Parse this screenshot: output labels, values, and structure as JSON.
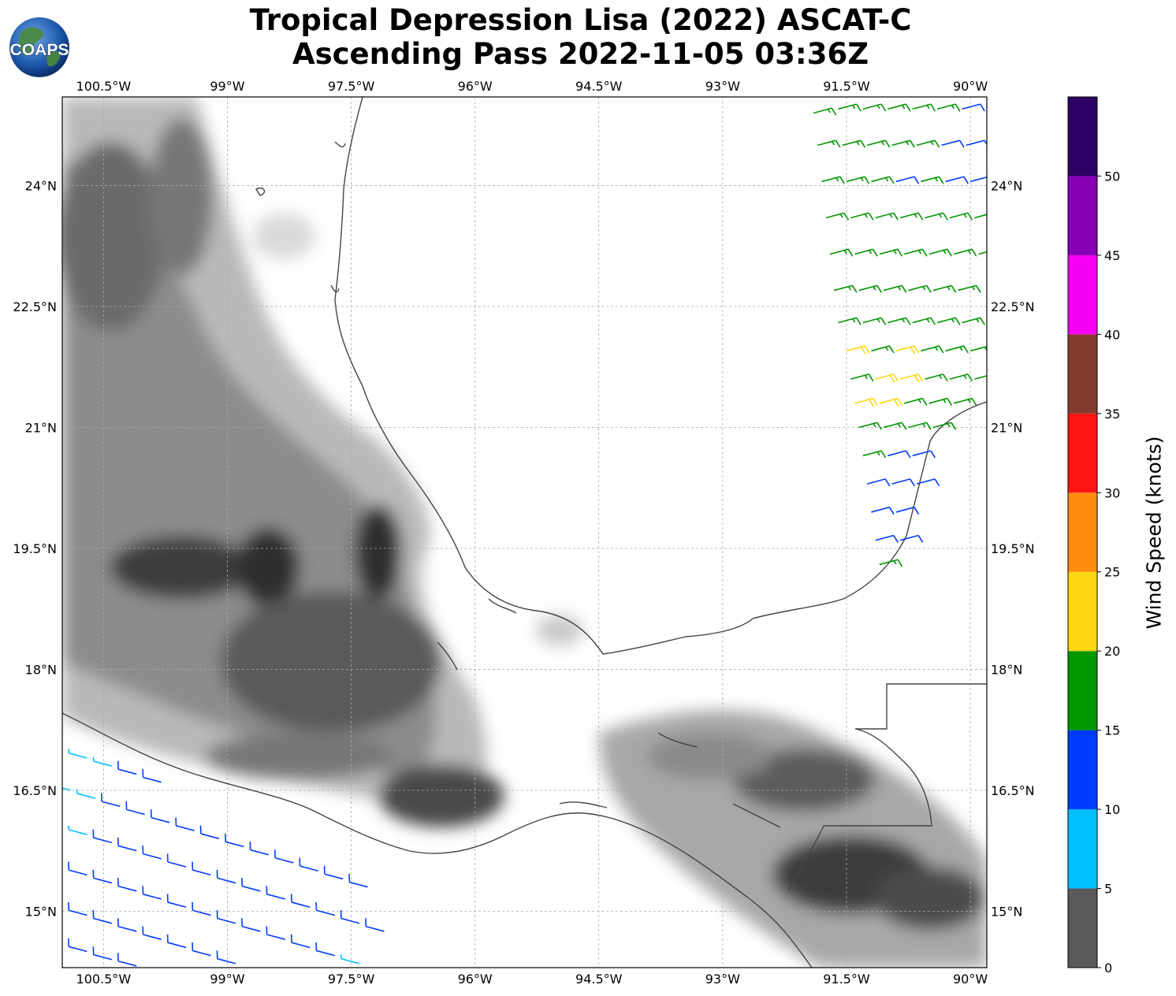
{
  "title": {
    "line1": "Tropical Depression Lisa (2022) ASCAT-C",
    "line2": "Ascending Pass 2022-11-05 03:36Z"
  },
  "logo": {
    "text": "COAPS",
    "icon": "globe-icon"
  },
  "map": {
    "lon_range": [
      -101.0,
      -89.8
    ],
    "lat_range": [
      14.3,
      25.1
    ],
    "gridlines": true,
    "lon_ticks": [
      {
        "value": -100.5,
        "label": "100.5°W"
      },
      {
        "value": -99.0,
        "label": "99°W"
      },
      {
        "value": -97.5,
        "label": "97.5°W"
      },
      {
        "value": -96.0,
        "label": "96°W"
      },
      {
        "value": -94.5,
        "label": "94.5°W"
      },
      {
        "value": -93.0,
        "label": "93°W"
      },
      {
        "value": -91.5,
        "label": "91.5°W"
      },
      {
        "value": -90.0,
        "label": "90°W"
      }
    ],
    "lat_ticks": [
      {
        "value": 24.0,
        "label": "24°N"
      },
      {
        "value": 22.5,
        "label": "22.5°N"
      },
      {
        "value": 21.0,
        "label": "21°N"
      },
      {
        "value": 19.5,
        "label": "19.5°N"
      },
      {
        "value": 18.0,
        "label": "18°N"
      },
      {
        "value": 16.5,
        "label": "16.5°N"
      },
      {
        "value": 15.0,
        "label": "15°N"
      }
    ],
    "terrain": "grayscale elevation shading",
    "coastline_color": "#444444"
  },
  "colorbar": {
    "label": "Wind Speed (knots)",
    "bins": [
      {
        "min": 0,
        "max": 5,
        "color": "#595959"
      },
      {
        "min": 5,
        "max": 10,
        "color": "#00bfff"
      },
      {
        "min": 10,
        "max": 15,
        "color": "#003cff"
      },
      {
        "min": 15,
        "max": 20,
        "color": "#009600"
      },
      {
        "min": 20,
        "max": 25,
        "color": "#ffd712"
      },
      {
        "min": 25,
        "max": 30,
        "color": "#ff8c0f"
      },
      {
        "min": 30,
        "max": 35,
        "color": "#ff1414"
      },
      {
        "min": 35,
        "max": 40,
        "color": "#823c2d"
      },
      {
        "min": 40,
        "max": 45,
        "color": "#f500f5"
      },
      {
        "min": 45,
        "max": 50,
        "color": "#8700b4"
      },
      {
        "min": 50,
        "max": 55,
        "color": "#2d0064"
      }
    ],
    "ticks": [
      "0",
      "5",
      "10",
      "15",
      "20",
      "25",
      "30",
      "35",
      "40",
      "45",
      "50"
    ]
  },
  "wind_swaths": [
    {
      "name": "east-swath",
      "direction_from_deg": 75,
      "points": [
        {
          "lon": -91.9,
          "lat": 24.9,
          "speed": 17
        },
        {
          "lon": -91.6,
          "lat": 24.95,
          "speed": 17
        },
        {
          "lon": -91.3,
          "lat": 24.95,
          "speed": 17
        },
        {
          "lon": -91.0,
          "lat": 24.95,
          "speed": 17
        },
        {
          "lon": -90.7,
          "lat": 24.95,
          "speed": 17
        },
        {
          "lon": -90.4,
          "lat": 24.95,
          "speed": 17
        },
        {
          "lon": -90.1,
          "lat": 24.95,
          "speed": 12
        },
        {
          "lon": -91.85,
          "lat": 24.5,
          "speed": 17
        },
        {
          "lon": -91.55,
          "lat": 24.5,
          "speed": 17
        },
        {
          "lon": -91.25,
          "lat": 24.5,
          "speed": 17
        },
        {
          "lon": -90.95,
          "lat": 24.5,
          "speed": 17
        },
        {
          "lon": -90.65,
          "lat": 24.5,
          "speed": 17
        },
        {
          "lon": -90.35,
          "lat": 24.5,
          "speed": 12
        },
        {
          "lon": -90.05,
          "lat": 24.5,
          "speed": 12
        },
        {
          "lon": -91.8,
          "lat": 24.05,
          "speed": 17
        },
        {
          "lon": -91.5,
          "lat": 24.05,
          "speed": 17
        },
        {
          "lon": -91.2,
          "lat": 24.05,
          "speed": 17
        },
        {
          "lon": -90.9,
          "lat": 24.05,
          "speed": 12
        },
        {
          "lon": -90.6,
          "lat": 24.05,
          "speed": 17
        },
        {
          "lon": -90.3,
          "lat": 24.05,
          "speed": 12
        },
        {
          "lon": -90.0,
          "lat": 24.05,
          "speed": 12
        },
        {
          "lon": -91.75,
          "lat": 23.6,
          "speed": 17
        },
        {
          "lon": -91.45,
          "lat": 23.6,
          "speed": 17
        },
        {
          "lon": -91.15,
          "lat": 23.6,
          "speed": 17
        },
        {
          "lon": -90.85,
          "lat": 23.6,
          "speed": 17
        },
        {
          "lon": -90.55,
          "lat": 23.6,
          "speed": 17
        },
        {
          "lon": -90.25,
          "lat": 23.6,
          "speed": 17
        },
        {
          "lon": -89.95,
          "lat": 23.6,
          "speed": 17
        },
        {
          "lon": -91.7,
          "lat": 23.15,
          "speed": 17
        },
        {
          "lon": -91.4,
          "lat": 23.15,
          "speed": 17
        },
        {
          "lon": -91.1,
          "lat": 23.15,
          "speed": 17
        },
        {
          "lon": -90.8,
          "lat": 23.15,
          "speed": 17
        },
        {
          "lon": -90.5,
          "lat": 23.15,
          "speed": 17
        },
        {
          "lon": -90.2,
          "lat": 23.15,
          "speed": 17
        },
        {
          "lon": -89.9,
          "lat": 23.15,
          "speed": 17
        },
        {
          "lon": -91.65,
          "lat": 22.7,
          "speed": 17
        },
        {
          "lon": -91.35,
          "lat": 22.7,
          "speed": 17
        },
        {
          "lon": -91.05,
          "lat": 22.7,
          "speed": 17
        },
        {
          "lon": -90.75,
          "lat": 22.7,
          "speed": 17
        },
        {
          "lon": -90.45,
          "lat": 22.7,
          "speed": 17
        },
        {
          "lon": -90.15,
          "lat": 22.7,
          "speed": 17
        },
        {
          "lon": -91.6,
          "lat": 22.3,
          "speed": 17
        },
        {
          "lon": -91.3,
          "lat": 22.3,
          "speed": 17
        },
        {
          "lon": -91.0,
          "lat": 22.3,
          "speed": 17
        },
        {
          "lon": -90.7,
          "lat": 22.3,
          "speed": 17
        },
        {
          "lon": -90.4,
          "lat": 22.3,
          "speed": 17
        },
        {
          "lon": -90.1,
          "lat": 22.3,
          "speed": 17
        },
        {
          "lon": -91.5,
          "lat": 21.95,
          "speed": 22
        },
        {
          "lon": -91.2,
          "lat": 21.95,
          "speed": 17
        },
        {
          "lon": -90.9,
          "lat": 21.95,
          "speed": 22
        },
        {
          "lon": -90.6,
          "lat": 21.95,
          "speed": 17
        },
        {
          "lon": -90.3,
          "lat": 21.95,
          "speed": 17
        },
        {
          "lon": -90.0,
          "lat": 21.95,
          "speed": 17
        },
        {
          "lon": -91.45,
          "lat": 21.6,
          "speed": 17
        },
        {
          "lon": -91.15,
          "lat": 21.6,
          "speed": 22
        },
        {
          "lon": -90.85,
          "lat": 21.6,
          "speed": 22
        },
        {
          "lon": -90.55,
          "lat": 21.6,
          "speed": 17
        },
        {
          "lon": -90.25,
          "lat": 21.6,
          "speed": 17
        },
        {
          "lon": -89.95,
          "lat": 21.6,
          "speed": 17
        },
        {
          "lon": -91.4,
          "lat": 21.3,
          "speed": 22
        },
        {
          "lon": -91.1,
          "lat": 21.3,
          "speed": 22
        },
        {
          "lon": -90.8,
          "lat": 21.3,
          "speed": 17
        },
        {
          "lon": -90.5,
          "lat": 21.3,
          "speed": 17
        },
        {
          "lon": -90.2,
          "lat": 21.3,
          "speed": 17
        },
        {
          "lon": -91.35,
          "lat": 21.0,
          "speed": 17
        },
        {
          "lon": -91.05,
          "lat": 21.0,
          "speed": 17
        },
        {
          "lon": -90.75,
          "lat": 21.0,
          "speed": 17
        },
        {
          "lon": -90.45,
          "lat": 21.0,
          "speed": 17
        },
        {
          "lon": -91.3,
          "lat": 20.65,
          "speed": 17
        },
        {
          "lon": -91.0,
          "lat": 20.65,
          "speed": 12
        },
        {
          "lon": -90.7,
          "lat": 20.65,
          "speed": 12
        },
        {
          "lon": -91.25,
          "lat": 20.3,
          "speed": 12
        },
        {
          "lon": -90.95,
          "lat": 20.3,
          "speed": 12
        },
        {
          "lon": -90.65,
          "lat": 20.3,
          "speed": 12
        },
        {
          "lon": -91.2,
          "lat": 19.95,
          "speed": 12
        },
        {
          "lon": -90.9,
          "lat": 19.95,
          "speed": 12
        },
        {
          "lon": -91.15,
          "lat": 19.6,
          "speed": 12
        },
        {
          "lon": -90.85,
          "lat": 19.6,
          "speed": 12
        },
        {
          "lon": -91.1,
          "lat": 19.3,
          "speed": 17
        }
      ]
    },
    {
      "name": "southwest-swath",
      "direction_from_deg": 285,
      "points": [
        {
          "lon": -100.7,
          "lat": 16.9,
          "speed": 7
        },
        {
          "lon": -100.4,
          "lat": 16.8,
          "speed": 7
        },
        {
          "lon": -100.1,
          "lat": 16.7,
          "speed": 12
        },
        {
          "lon": -99.8,
          "lat": 16.6,
          "speed": 12
        },
        {
          "lon": -100.9,
          "lat": 16.5,
          "speed": 7
        },
        {
          "lon": -100.6,
          "lat": 16.4,
          "speed": 7
        },
        {
          "lon": -100.3,
          "lat": 16.3,
          "speed": 12
        },
        {
          "lon": -100.0,
          "lat": 16.2,
          "speed": 12
        },
        {
          "lon": -99.7,
          "lat": 16.1,
          "speed": 12
        },
        {
          "lon": -99.4,
          "lat": 16.0,
          "speed": 12
        },
        {
          "lon": -99.1,
          "lat": 15.9,
          "speed": 12
        },
        {
          "lon": -98.8,
          "lat": 15.8,
          "speed": 12
        },
        {
          "lon": -98.5,
          "lat": 15.7,
          "speed": 12
        },
        {
          "lon": -98.2,
          "lat": 15.6,
          "speed": 12
        },
        {
          "lon": -97.9,
          "lat": 15.5,
          "speed": 12
        },
        {
          "lon": -97.6,
          "lat": 15.4,
          "speed": 12
        },
        {
          "lon": -97.3,
          "lat": 15.3,
          "speed": 12
        },
        {
          "lon": -101.0,
          "lat": 16.05,
          "speed": 7
        },
        {
          "lon": -100.7,
          "lat": 15.95,
          "speed": 7
        },
        {
          "lon": -100.4,
          "lat": 15.85,
          "speed": 12
        },
        {
          "lon": -100.1,
          "lat": 15.75,
          "speed": 12
        },
        {
          "lon": -99.8,
          "lat": 15.65,
          "speed": 12
        },
        {
          "lon": -99.5,
          "lat": 15.55,
          "speed": 12
        },
        {
          "lon": -99.2,
          "lat": 15.45,
          "speed": 12
        },
        {
          "lon": -98.9,
          "lat": 15.35,
          "speed": 12
        },
        {
          "lon": -98.6,
          "lat": 15.25,
          "speed": 12
        },
        {
          "lon": -98.3,
          "lat": 15.15,
          "speed": 12
        },
        {
          "lon": -98.0,
          "lat": 15.05,
          "speed": 12
        },
        {
          "lon": -97.7,
          "lat": 14.95,
          "speed": 12
        },
        {
          "lon": -97.4,
          "lat": 14.85,
          "speed": 12
        },
        {
          "lon": -97.1,
          "lat": 14.75,
          "speed": 12
        },
        {
          "lon": -101.0,
          "lat": 15.55,
          "speed": 7
        },
        {
          "lon": -100.7,
          "lat": 15.45,
          "speed": 12
        },
        {
          "lon": -100.4,
          "lat": 15.35,
          "speed": 12
        },
        {
          "lon": -100.1,
          "lat": 15.25,
          "speed": 12
        },
        {
          "lon": -99.8,
          "lat": 15.15,
          "speed": 12
        },
        {
          "lon": -99.5,
          "lat": 15.05,
          "speed": 12
        },
        {
          "lon": -99.2,
          "lat": 14.95,
          "speed": 12
        },
        {
          "lon": -98.9,
          "lat": 14.85,
          "speed": 12
        },
        {
          "lon": -98.6,
          "lat": 14.75,
          "speed": 12
        },
        {
          "lon": -98.3,
          "lat": 14.65,
          "speed": 12
        },
        {
          "lon": -98.0,
          "lat": 14.55,
          "speed": 12
        },
        {
          "lon": -97.7,
          "lat": 14.45,
          "speed": 12
        },
        {
          "lon": -97.4,
          "lat": 14.35,
          "speed": 7
        },
        {
          "lon": -101.0,
          "lat": 15.05,
          "speed": 12
        },
        {
          "lon": -100.7,
          "lat": 14.95,
          "speed": 12
        },
        {
          "lon": -100.4,
          "lat": 14.85,
          "speed": 12
        },
        {
          "lon": -100.1,
          "lat": 14.75,
          "speed": 12
        },
        {
          "lon": -99.8,
          "lat": 14.65,
          "speed": 12
        },
        {
          "lon": -99.5,
          "lat": 14.55,
          "speed": 12
        },
        {
          "lon": -99.2,
          "lat": 14.45,
          "speed": 12
        },
        {
          "lon": -98.9,
          "lat": 14.35,
          "speed": 12
        },
        {
          "lon": -101.0,
          "lat": 14.6,
          "speed": 12
        },
        {
          "lon": -100.7,
          "lat": 14.5,
          "speed": 12
        },
        {
          "lon": -100.4,
          "lat": 14.4,
          "speed": 12
        },
        {
          "lon": -100.1,
          "lat": 14.32,
          "speed": 12
        }
      ]
    }
  ]
}
